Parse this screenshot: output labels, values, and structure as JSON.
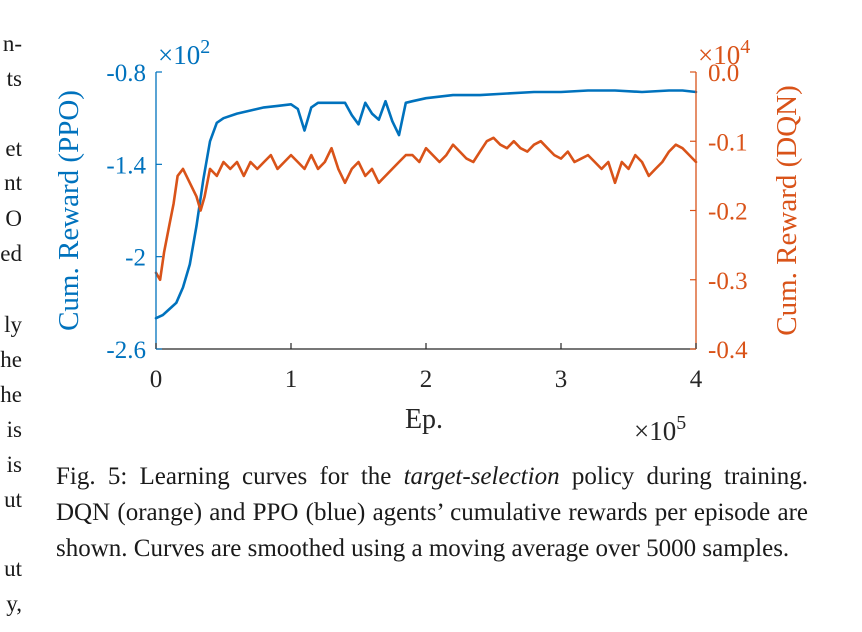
{
  "margin_fragments": [
    "n-",
    "ts",
    "et",
    "nt",
    "O",
    "ed",
    "ly",
    "he",
    "he",
    "is",
    "is",
    "ut",
    "ut",
    "y,"
  ],
  "caption": {
    "label": "Fig. 5:",
    "pre": "Learning curves for the",
    "italic": "target-selection",
    "post": "policy during training. DQN (orange) and PPO (blue) agents’ cumulative rewards per episode are shown. Curves are smoothed using a moving average over 5000 samples."
  },
  "colors": {
    "ppo": "#0072bd",
    "dqn": "#d95319",
    "axis": "#262626"
  },
  "chart_data": {
    "type": "line",
    "xlabel": "Ep.",
    "x_multiplier": "×10",
    "x_exponent": "5",
    "xlim": [
      0,
      4
    ],
    "xticks": [
      "0",
      "1",
      "2",
      "3",
      "4"
    ],
    "y_left": {
      "label": "Cum. Reward (PPO)",
      "multiplier": "×10",
      "exponent": "2",
      "ylim": [
        -2.6,
        -0.8
      ],
      "ticks": [
        "-0.8",
        "-1.4",
        "-2",
        "-2.6"
      ]
    },
    "y_right": {
      "label": "Cum. Reward (DQN)",
      "multiplier": "×10",
      "exponent": "4",
      "ylim": [
        -0.4,
        0.0
      ],
      "ticks": [
        "0.0",
        "-0.1",
        "-0.2",
        "-0.3",
        "-0.4"
      ]
    },
    "series": [
      {
        "axis": "left",
        "color": "#0072bd",
        "x": [
          0,
          0.05,
          0.1,
          0.15,
          0.2,
          0.25,
          0.3,
          0.35,
          0.4,
          0.45,
          0.5,
          0.6,
          0.7,
          0.8,
          0.9,
          1.0,
          1.05,
          1.1,
          1.15,
          1.2,
          1.3,
          1.4,
          1.45,
          1.5,
          1.55,
          1.6,
          1.65,
          1.7,
          1.75,
          1.8,
          1.85,
          1.9,
          2.0,
          2.2,
          2.4,
          2.6,
          2.8,
          3.0,
          3.2,
          3.4,
          3.6,
          3.8,
          3.9,
          4.0
        ],
        "y": [
          -2.4,
          -2.38,
          -2.34,
          -2.3,
          -2.2,
          -2.05,
          -1.8,
          -1.5,
          -1.25,
          -1.13,
          -1.1,
          -1.07,
          -1.05,
          -1.03,
          -1.02,
          -1.01,
          -1.04,
          -1.18,
          -1.03,
          -1.0,
          -1.0,
          -1.0,
          -1.08,
          -1.14,
          -1.0,
          -1.07,
          -1.11,
          -0.99,
          -1.12,
          -1.21,
          -1.0,
          -0.99,
          -0.97,
          -0.95,
          -0.95,
          -0.94,
          -0.93,
          -0.93,
          -0.92,
          -0.92,
          -0.93,
          -0.92,
          -0.92,
          -0.93
        ]
      },
      {
        "axis": "right",
        "color": "#d95319",
        "x": [
          0,
          0.03,
          0.06,
          0.1,
          0.13,
          0.16,
          0.2,
          0.25,
          0.3,
          0.33,
          0.36,
          0.4,
          0.45,
          0.5,
          0.55,
          0.6,
          0.65,
          0.7,
          0.75,
          0.8,
          0.85,
          0.9,
          0.95,
          1.0,
          1.05,
          1.1,
          1.15,
          1.2,
          1.25,
          1.3,
          1.35,
          1.4,
          1.45,
          1.5,
          1.55,
          1.6,
          1.65,
          1.7,
          1.75,
          1.8,
          1.85,
          1.9,
          1.95,
          2.0,
          2.05,
          2.1,
          2.15,
          2.2,
          2.25,
          2.3,
          2.35,
          2.4,
          2.45,
          2.5,
          2.55,
          2.6,
          2.65,
          2.7,
          2.75,
          2.8,
          2.85,
          2.9,
          2.95,
          3.0,
          3.05,
          3.1,
          3.15,
          3.2,
          3.25,
          3.3,
          3.35,
          3.4,
          3.45,
          3.5,
          3.55,
          3.6,
          3.65,
          3.7,
          3.75,
          3.8,
          3.85,
          3.9,
          3.95,
          4.0
        ],
        "y": [
          -0.29,
          -0.3,
          -0.26,
          -0.22,
          -0.19,
          -0.15,
          -0.14,
          -0.16,
          -0.18,
          -0.2,
          -0.18,
          -0.14,
          -0.15,
          -0.13,
          -0.14,
          -0.13,
          -0.15,
          -0.13,
          -0.14,
          -0.13,
          -0.12,
          -0.14,
          -0.13,
          -0.12,
          -0.13,
          -0.14,
          -0.12,
          -0.14,
          -0.13,
          -0.11,
          -0.14,
          -0.16,
          -0.14,
          -0.13,
          -0.15,
          -0.14,
          -0.16,
          -0.15,
          -0.14,
          -0.13,
          -0.12,
          -0.12,
          -0.13,
          -0.11,
          -0.12,
          -0.13,
          -0.12,
          -0.105,
          -0.115,
          -0.125,
          -0.13,
          -0.115,
          -0.1,
          -0.095,
          -0.105,
          -0.11,
          -0.1,
          -0.11,
          -0.115,
          -0.105,
          -0.1,
          -0.11,
          -0.12,
          -0.125,
          -0.115,
          -0.13,
          -0.125,
          -0.12,
          -0.13,
          -0.14,
          -0.13,
          -0.16,
          -0.13,
          -0.14,
          -0.12,
          -0.13,
          -0.15,
          -0.14,
          -0.13,
          -0.115,
          -0.105,
          -0.11,
          -0.12,
          -0.13
        ]
      }
    ]
  }
}
